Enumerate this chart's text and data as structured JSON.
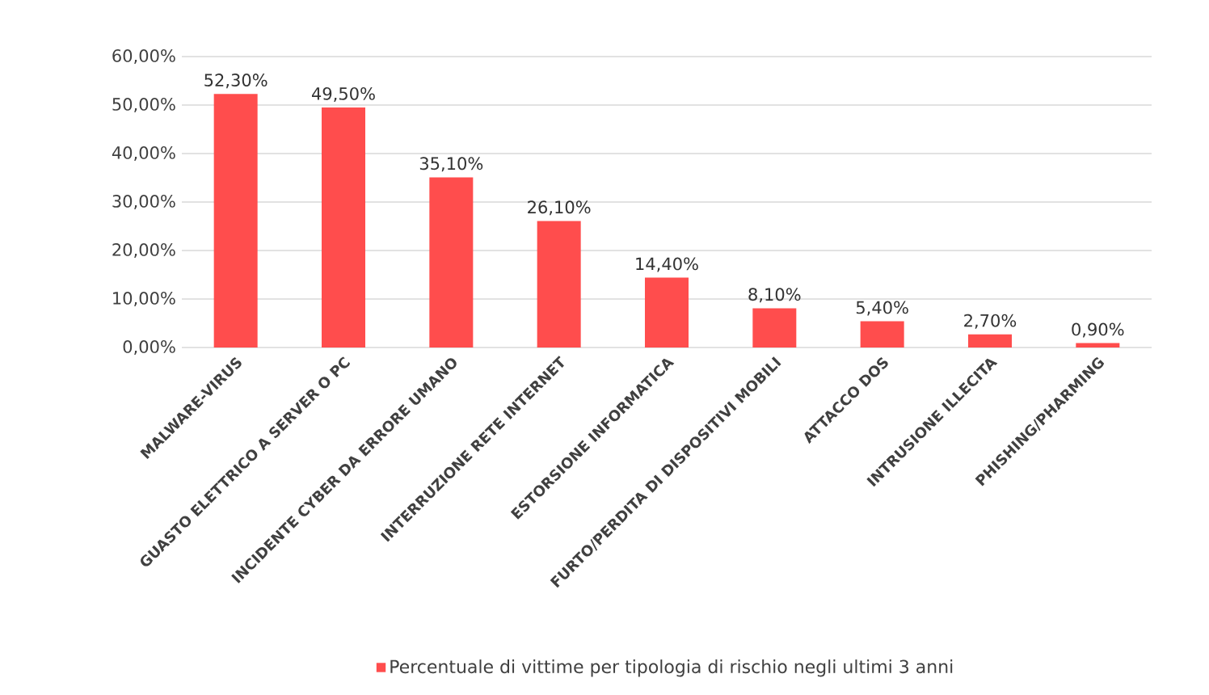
{
  "chart_data": {
    "type": "bar",
    "categories": [
      "MALWARE-VIRUS",
      "GUASTO ELETTRICO A SERVER O PC",
      "INCIDENTE CYBER DA ERRORE UMANO",
      "INTERRUZIONE RETE INTERNET",
      "ESTORSIONE INFORMATICA",
      "FURTO/PERDITA DI DISPOSITIVI MOBILI",
      "ATTACCO DOS",
      "INTRUSIONE ILLECITA",
      "PHISHING/PHARMING"
    ],
    "series": [
      {
        "name": "Percentuale di vittime per tipologia di rischio negli ultimi 3 anni",
        "color": "#ff4d4d",
        "values": [
          52.3,
          49.5,
          35.1,
          26.1,
          14.4,
          8.1,
          5.4,
          2.7,
          0.9
        ],
        "value_labels": [
          "52,30%",
          "49,50%",
          "35,10%",
          "26,10%",
          "14,40%",
          "8,10%",
          "5,40%",
          "2,70%",
          "0,90%"
        ]
      }
    ],
    "ylim": [
      0,
      60
    ],
    "yticks": [
      {
        "value": 0,
        "label": "0,00%"
      },
      {
        "value": 10,
        "label": "10,00%"
      },
      {
        "value": 20,
        "label": "20,00%"
      },
      {
        "value": 30,
        "label": "30,00%"
      },
      {
        "value": 40,
        "label": "40,00%"
      },
      {
        "value": 50,
        "label": "50,00%"
      },
      {
        "value": 60,
        "label": "60,00%"
      }
    ],
    "grid": "y",
    "legend": "bottom"
  }
}
